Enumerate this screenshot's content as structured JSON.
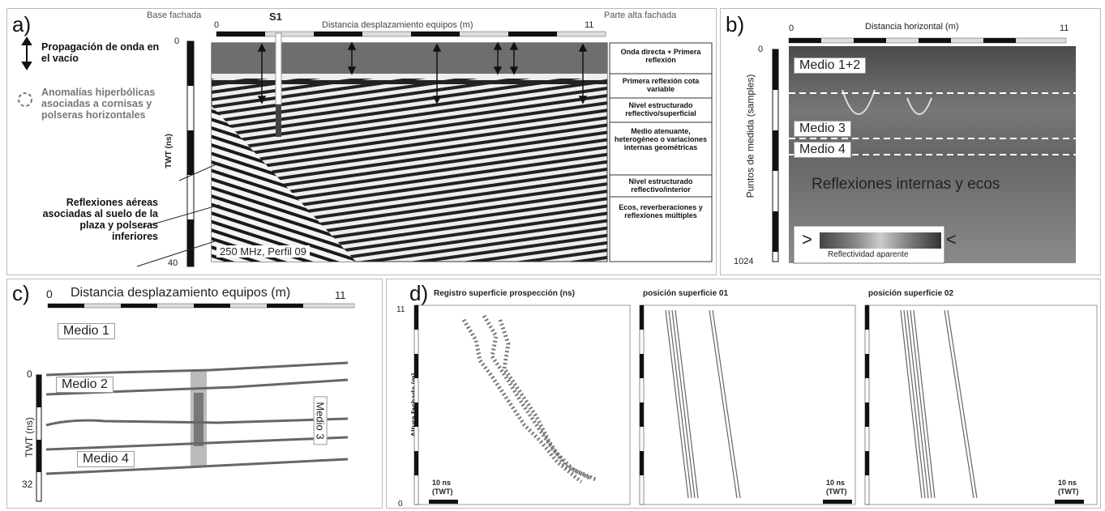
{
  "panel_a": {
    "letter": "a)",
    "base_label": "Base fachada",
    "top_label": "Parte alta fachada",
    "s1_label": "S1",
    "axis_title": "Distancia desplazamiento equipos (m)",
    "axis_start": "0",
    "axis_end": "11",
    "y_title": "TWT (ns)",
    "y_top": "0",
    "y_bottom": "40",
    "profile_caption": "250 MHz, Perfil 09",
    "legend_propagation": "Propagación de onda en el vacío",
    "legend_anomalies": "Anomalías hiperbólicas asociadas a cornisas y polseras horizontales",
    "legend_reflections": "Reflexiones aéreas asociadas al suelo de la plaza y polseras inferiores",
    "interpretation": [
      "Onda directa + Primera reflexión",
      "Primera reflexión cota variable",
      "Nivel estructurado reflectivo/superficial",
      "Medio atenuante, heterogéneo o variaciones internas geométricas",
      "Nivel estructurado reflectivo/interior",
      "Ecos, reverberaciones y reflexiones múltiples"
    ]
  },
  "panel_b": {
    "letter": "b)",
    "axis_title": "Distancia horizontal (m)",
    "axis_start": "0",
    "axis_end": "11",
    "y_title": "Puntos de medida (samples)",
    "y_top": "0",
    "y_bottom": "1024",
    "medio12": "Medio 1+2",
    "medio3": "Medio 3",
    "medio4": "Medio 4",
    "reflexiones": "Reflexiones internas y ecos",
    "scale_left": ">",
    "scale_right": "<",
    "scale_caption": "Reflectividad aparente"
  },
  "panel_c": {
    "letter": "c)",
    "axis_title": "Distancia desplazamiento equipos (m)",
    "axis_start": "0",
    "axis_end": "11",
    "y_title": "TWT (ns)",
    "y_top": "0",
    "y_bottom": "32",
    "medio1": "Medio 1",
    "medio2": "Medio 2",
    "medio3": "Medio 3",
    "medio4": "Medio 4"
  },
  "panel_d": {
    "letter": "d)",
    "title1": "Registro superficie prospección (ns)",
    "title2": "posición superficie 01",
    "title3": "posición superficie 02",
    "y_title": "Altura fachada (m)",
    "y_top": "11",
    "y_bottom": "0",
    "scale_label": "10 ns",
    "scale_unit": "(TWT)"
  }
}
